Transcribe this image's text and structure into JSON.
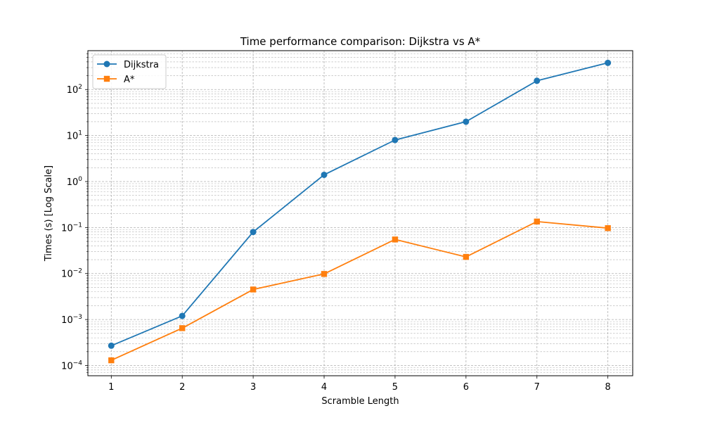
{
  "chart_data": {
    "type": "line",
    "title": "Time performance comparison: Dijkstra vs A*",
    "xlabel": "Scramble Length",
    "ylabel": "Times (s) [Log Scale]",
    "x": [
      1,
      2,
      3,
      4,
      5,
      6,
      7,
      8
    ],
    "xticks": [
      1,
      2,
      3,
      4,
      5,
      6,
      7,
      8
    ],
    "xlim": [
      0.67,
      8.35
    ],
    "y_scale": "log",
    "ylim": [
      6e-05,
      700
    ],
    "yticks": [
      {
        "value": 0.0001,
        "base": "10",
        "exp": "−4"
      },
      {
        "value": 0.001,
        "base": "10",
        "exp": "−3"
      },
      {
        "value": 0.01,
        "base": "10",
        "exp": "−2"
      },
      {
        "value": 0.1,
        "base": "10",
        "exp": "−1"
      },
      {
        "value": 1,
        "base": "10",
        "exp": "0"
      },
      {
        "value": 10,
        "base": "10",
        "exp": "1"
      },
      {
        "value": 100,
        "base": "10",
        "exp": "2"
      }
    ],
    "grid": true,
    "legend_position": "top-left",
    "series": [
      {
        "name": "Dijkstra",
        "color": "#1f77b4",
        "marker": "circle",
        "values": [
          0.00027,
          0.0012,
          0.08,
          1.4,
          8.0,
          20.0,
          155.0,
          380.0
        ]
      },
      {
        "name": "A*",
        "color": "#ff7f0e",
        "marker": "square",
        "values": [
          0.00013,
          0.00065,
          0.0045,
          0.0098,
          0.055,
          0.023,
          0.135,
          0.097
        ]
      }
    ]
  }
}
